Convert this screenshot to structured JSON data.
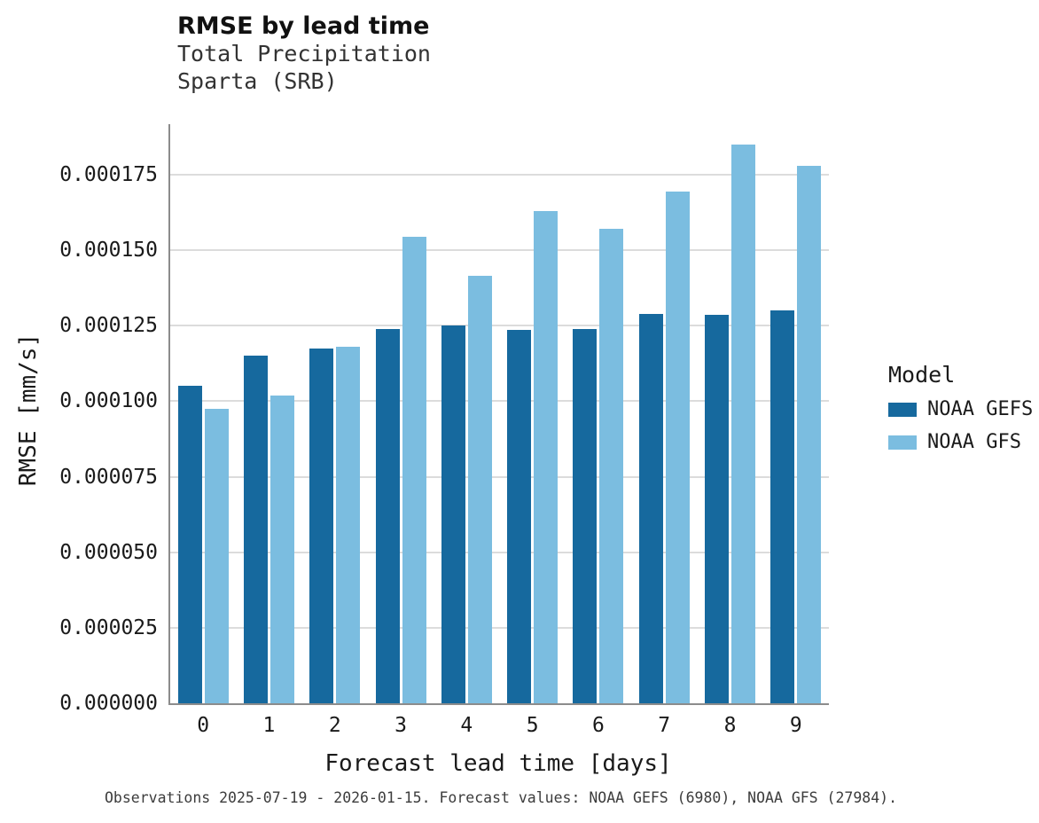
{
  "chart_data": {
    "type": "bar",
    "title": "RMSE by lead time",
    "subtitle_line1": "Total Precipitation",
    "subtitle_line2": "Sparta (SRB)",
    "xlabel": "Forecast lead time [days]",
    "ylabel": "RMSE [mm/s]",
    "categories": [
      "0",
      "1",
      "2",
      "3",
      "4",
      "5",
      "6",
      "7",
      "8",
      "9"
    ],
    "series": [
      {
        "name": "NOAA GEFS",
        "color": "#16699e",
        "values": [
          0.000105,
          0.000115,
          0.0001175,
          0.000124,
          0.000125,
          0.0001235,
          0.000124,
          0.000129,
          0.0001285,
          0.00013
        ]
      },
      {
        "name": "NOAA GFS",
        "color": "#7bbde0",
        "values": [
          9.75e-05,
          0.000102,
          0.000118,
          0.0001545,
          0.0001415,
          0.000163,
          0.000157,
          0.0001695,
          0.000185,
          0.000178
        ]
      }
    ],
    "ylim": [
      0,
      0.0001917
    ],
    "yticks": [
      0,
      2.5e-05,
      5e-05,
      7.5e-05,
      0.0001,
      0.000125,
      0.00015,
      0.000175
    ],
    "ytick_labels": [
      "0.000000",
      "0.000025",
      "0.000050",
      "0.000075",
      "0.000100",
      "0.000125",
      "0.000150",
      "0.000175"
    ],
    "grid": true,
    "grid_color": "#dcdcdc",
    "legend_title": "Model",
    "legend_position": "right",
    "background": "#ffffff"
  },
  "caption": "Observations 2025-07-19 - 2026-01-15. Forecast values: NOAA GEFS (6980), NOAA GFS (27984)."
}
